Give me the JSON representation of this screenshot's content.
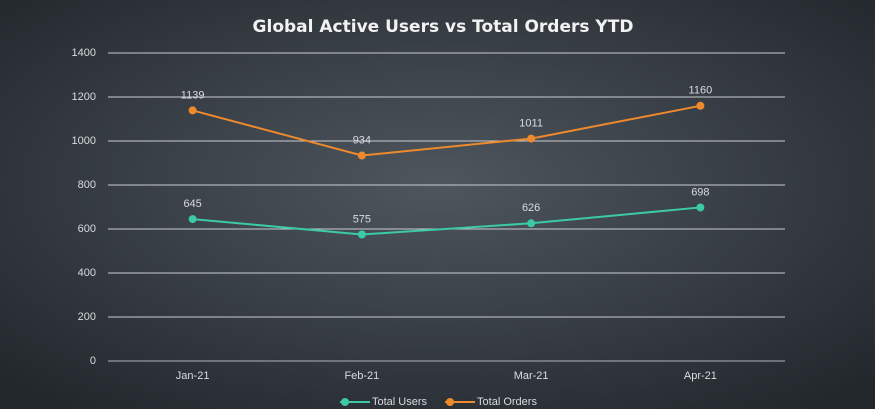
{
  "chart_data": {
    "type": "line",
    "title": "Global Active Users vs Total Orders YTD",
    "categories": [
      "Jan-21",
      "Feb-21",
      "Mar-21",
      "Apr-21"
    ],
    "series": [
      {
        "name": "Total Users",
        "color": "#3cc9a6",
        "values": [
          645,
          575,
          626,
          698
        ]
      },
      {
        "name": "Total Orders",
        "color": "#ee8a2c",
        "values": [
          1139,
          934,
          1011,
          1160
        ]
      }
    ],
    "ylim": [
      0,
      1400
    ],
    "yticks": [
      0,
      200,
      400,
      600,
      800,
      1000,
      1200,
      1400
    ],
    "grid": true,
    "legend": "bottom"
  }
}
